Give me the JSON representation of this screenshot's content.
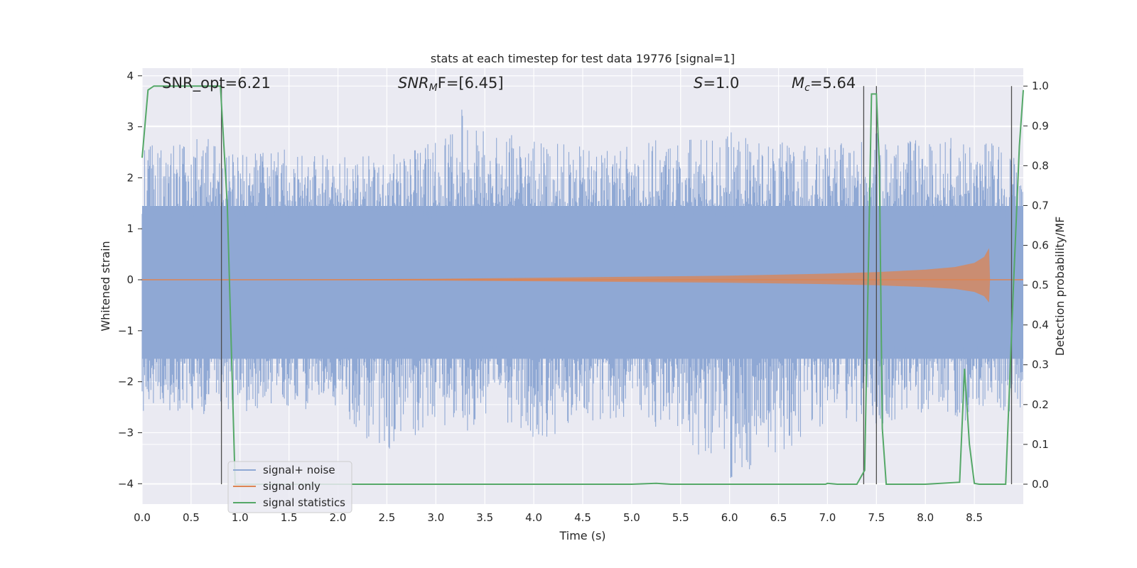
{
  "chart_data": {
    "type": "line",
    "title": "stats at each timestep for test data 19776 [signal=1]",
    "xlabel": "Time (s)",
    "ylabel": "Whitened strain",
    "y2label": "Detection probability/MF",
    "xlim": [
      0.0,
      9.0
    ],
    "ylim": [
      -4.4,
      4.15
    ],
    "y2lim": [
      -0.05,
      1.045
    ],
    "x_ticks": [
      "0.0",
      "0.5",
      "1.0",
      "1.5",
      "2.0",
      "2.5",
      "3.0",
      "3.5",
      "4.0",
      "4.5",
      "5.0",
      "5.5",
      "6.0",
      "6.5",
      "7.0",
      "7.5",
      "8.0",
      "8.5"
    ],
    "y_ticks": [
      "4",
      "3",
      "2",
      "1",
      "0",
      "−1",
      "−2",
      "−3",
      "−4"
    ],
    "y2_ticks": [
      "1.0",
      "0.9",
      "0.8",
      "0.7",
      "0.6",
      "0.5",
      "0.4",
      "0.3",
      "0.2",
      "0.1",
      "0.0"
    ],
    "grid": true,
    "legend_position": "lower-left",
    "annotations": {
      "snr_opt": "SNR_opt=6.21",
      "snr_mf_label": "SNR",
      "snr_mf_sub": "M",
      "snr_mf_suffix": "F=[6.45]",
      "s_label": "S",
      "s_value": "=1.0",
      "mc_label": "M",
      "mc_sub": "c",
      "mc_value": "=5.64"
    },
    "series": [
      {
        "name": "signal+ noise",
        "color": "#8fa8d4",
        "axis": "left",
        "description_range": [
          -4.0,
          3.8
        ],
        "envelope_positive_x": [
          0.0,
          0.5,
          1.0,
          1.5,
          2.0,
          2.5,
          3.0,
          3.3,
          3.5,
          4.0,
          4.5,
          5.0,
          5.5,
          6.0,
          6.5,
          7.0,
          7.5,
          8.0,
          8.5,
          9.0
        ],
        "envelope_positive_y": [
          2.6,
          2.9,
          2.5,
          2.6,
          2.4,
          2.5,
          2.7,
          3.5,
          2.9,
          2.8,
          2.6,
          2.7,
          2.8,
          2.9,
          2.7,
          2.6,
          2.9,
          2.7,
          2.9,
          2.4
        ],
        "envelope_negative_y": [
          -2.6,
          -2.7,
          -2.6,
          -2.5,
          -2.7,
          -3.4,
          -2.8,
          -3.1,
          -2.7,
          -3.2,
          -2.8,
          -2.7,
          -3.1,
          -4.0,
          -3.5,
          -2.8,
          -2.9,
          -2.7,
          -2.8,
          -2.6
        ]
      },
      {
        "name": "signal only",
        "color": "#dd8452",
        "axis": "left",
        "x": [
          0.0,
          2.0,
          3.0,
          4.0,
          5.0,
          6.0,
          7.0,
          7.5,
          8.0,
          8.3,
          8.5,
          8.6,
          8.65,
          8.66,
          9.0
        ],
        "amplitude": [
          0.0,
          0.01,
          0.02,
          0.04,
          0.06,
          0.08,
          0.12,
          0.15,
          0.2,
          0.25,
          0.33,
          0.45,
          0.62,
          0.0,
          0.0
        ]
      },
      {
        "name": "signal statistics",
        "color": "#55a868",
        "axis": "right",
        "x": [
          0.0,
          0.06,
          0.12,
          0.3,
          0.5,
          0.7,
          0.8,
          0.87,
          0.95,
          1.0,
          2.0,
          3.0,
          4.0,
          5.0,
          5.25,
          5.4,
          6.0,
          6.98,
          7.0,
          7.1,
          7.3,
          7.38,
          7.45,
          7.5,
          7.53,
          7.56,
          7.6,
          7.65,
          8.0,
          8.35,
          8.4,
          8.45,
          8.5,
          8.55,
          8.7,
          8.82,
          8.9,
          8.96,
          9.0
        ],
        "y": [
          0.82,
          0.99,
          1.0,
          1.0,
          1.0,
          1.0,
          1.0,
          0.7,
          0.0,
          0.0,
          0.0,
          0.0,
          0.0,
          0.0,
          0.002,
          0.0,
          0.0,
          0.0,
          0.002,
          0.0,
          0.0,
          0.035,
          0.98,
          0.98,
          0.8,
          0.14,
          0.0,
          0.0,
          0.0,
          0.005,
          0.29,
          0.1,
          0.002,
          0.0,
          0.0,
          0.0,
          0.5,
          0.85,
          0.99
        ]
      }
    ],
    "vertical_lines_x": [
      0.81,
      7.37,
      7.5,
      8.88
    ],
    "horizontal_gridlines_right_values": [
      0.7,
      0.6,
      0.5,
      0.4,
      0.3
    ]
  }
}
